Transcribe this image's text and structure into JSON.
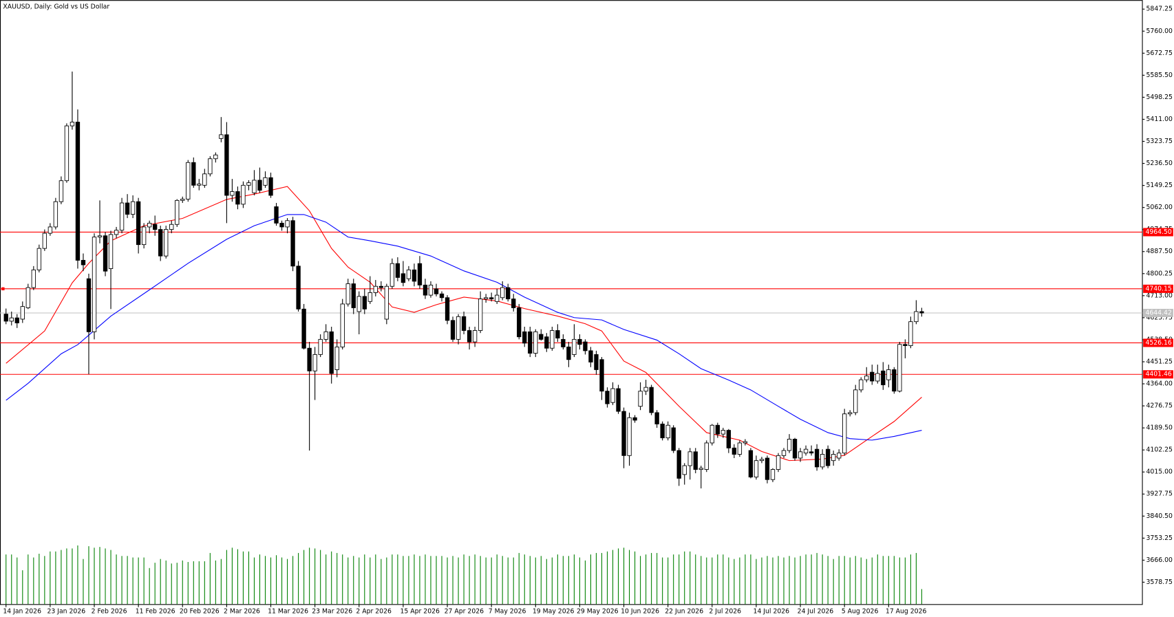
{
  "chart_data": {
    "type": "candlestick",
    "title": "XAUUSD, Daily:  Gold vs US Dollar",
    "categories": [
      "14 Jan 2026",
      null,
      null,
      null,
      null,
      null,
      null,
      null,
      "23 Jan 2026",
      null,
      null,
      null,
      null,
      null,
      null,
      null,
      "2 Feb 2026",
      null,
      null,
      null,
      null,
      null,
      null,
      null,
      "11 Feb 2026",
      null,
      null,
      null,
      null,
      null,
      null,
      null,
      "20 Feb 2026",
      null,
      null,
      null,
      null,
      null,
      null,
      null,
      "2 Mar 2026",
      null,
      null,
      null,
      null,
      null,
      null,
      null,
      "11 Mar 2026",
      null,
      null,
      null,
      null,
      null,
      null,
      null,
      "23 Mar 2026",
      null,
      null,
      null,
      null,
      null,
      null,
      null,
      "2 Apr 2026",
      null,
      null,
      null,
      null,
      null,
      null,
      null,
      "15 Apr 2026",
      null,
      null,
      null,
      null,
      null,
      null,
      null,
      "27 Apr 2026",
      null,
      null,
      null,
      null,
      null,
      null,
      null,
      "7 May 2026",
      null,
      null,
      null,
      null,
      null,
      null,
      null,
      "19 May 2026",
      null,
      null,
      null,
      null,
      null,
      null,
      null,
      "29 May 2026",
      null,
      null,
      null,
      null,
      null,
      null,
      null,
      "10 Jun 2026",
      null,
      null,
      null,
      null,
      null,
      null,
      null,
      "22 Jun 2026",
      null,
      null,
      null,
      null,
      null,
      null,
      null,
      "2 Jul 2026",
      null,
      null,
      null,
      null,
      null,
      null,
      null,
      "14 Jul 2026",
      null,
      null,
      null,
      null,
      null,
      null,
      null,
      "24 Jul 2026",
      null,
      null,
      null,
      null,
      null,
      null,
      null,
      "5 Aug 2026",
      null,
      null,
      null,
      null,
      null,
      null,
      null,
      "17 Aug 2026",
      null,
      null,
      null,
      null,
      null,
      null
    ],
    "open": [
      4640,
      4612,
      4625,
      4620,
      4665,
      4745,
      4815,
      4900,
      4960,
      4985,
      5085,
      5168,
      5385,
      5400,
      4853,
      4780,
      4570,
      4945,
      4950,
      4820,
      4955,
      4972,
      5080,
      5035,
      5085,
      4915,
      4985,
      4995,
      4975,
      4870,
      4975,
      4995,
      5090,
      5095,
      5240,
      5150,
      5150,
      5195,
      5255,
      5335,
      5350,
      5110,
      5125,
      5075,
      5150,
      5120,
      5170,
      5150,
      5180,
      5065,
      5000,
      4985,
      5010,
      4830,
      4660,
      4505,
      4415,
      4480,
      4540,
      4570,
      4420,
      4510,
      4680,
      4760,
      4650,
      4710,
      4690,
      4725,
      4750,
      4620,
      4750,
      4840,
      4800,
      4780,
      4815,
      4840,
      4755,
      4715,
      4740,
      4720,
      4705,
      4615,
      4540,
      4630,
      4575,
      4530,
      4575,
      4700,
      4705,
      4690,
      4705,
      4745,
      4700,
      4665,
      4570,
      4570,
      4485,
      4560,
      4550,
      4505,
      4575,
      4540,
      4510,
      4480,
      4540,
      4530,
      4495,
      4480,
      4460,
      4335,
      4290,
      4345,
      4255,
      4080,
      4230,
      4275,
      4335,
      4350,
      4250,
      4205,
      4150,
      4190,
      4100,
      4005,
      4040,
      4095,
      4025,
      4025,
      4130,
      4200,
      4165,
      4180,
      4110,
      4085,
      4130,
      4100,
      3995,
      4060,
      4070,
      3985,
      4025,
      4080,
      4100,
      4145,
      4070,
      4090,
      4095,
      4105,
      4035,
      4105,
      4060,
      4070,
      4090,
      4245,
      4250,
      4340,
      4380,
      4410,
      4375,
      4415,
      4380,
      4420,
      4335,
      4520,
      4515,
      4610,
      4650
    ],
    "high": [
      4662,
      4650,
      4640,
      4690,
      4760,
      4830,
      4915,
      4975,
      5000,
      5100,
      5185,
      5395,
      5600,
      5450,
      4880,
      4800,
      4960,
      5090,
      4965,
      4970,
      4985,
      5100,
      5115,
      5110,
      5100,
      5000,
      5010,
      5030,
      4990,
      4990,
      5010,
      5095,
      5105,
      5250,
      5260,
      5175,
      5215,
      5265,
      5280,
      5420,
      5400,
      5175,
      5145,
      5165,
      5170,
      5210,
      5220,
      5205,
      5200,
      5080,
      5010,
      5020,
      5025,
      4850,
      4680,
      4530,
      4510,
      4560,
      4600,
      4590,
      4540,
      4700,
      4780,
      4780,
      4730,
      4740,
      4790,
      4775,
      4770,
      4760,
      4860,
      4865,
      4850,
      4830,
      4840,
      4870,
      4780,
      4770,
      4760,
      4730,
      4715,
      4630,
      4640,
      4650,
      4590,
      4590,
      4730,
      4720,
      4725,
      4740,
      4770,
      4760,
      4720,
      4680,
      4590,
      4590,
      4580,
      4580,
      4565,
      4590,
      4600,
      4560,
      4530,
      4600,
      4560,
      4540,
      4510,
      4495,
      4470,
      4350,
      4370,
      4360,
      4270,
      4250,
      4240,
      4370,
      4380,
      4360,
      4260,
      4215,
      4215,
      4200,
      4110,
      4050,
      4110,
      4110,
      4040,
      4140,
      4205,
      4210,
      4190,
      4185,
      4125,
      4140,
      4145,
      4110,
      4080,
      4075,
      4080,
      4030,
      4090,
      4110,
      4165,
      4150,
      4110,
      4120,
      4120,
      4125,
      4105,
      4120,
      4100,
      4105,
      4265,
      4260,
      4360,
      4390,
      4430,
      4440,
      4440,
      4450,
      4440,
      4430,
      4530,
      4540,
      4630,
      4695,
      4665
    ],
    "low": [
      4600,
      4595,
      4585,
      4605,
      4660,
      4735,
      4805,
      4890,
      4950,
      4975,
      5075,
      5160,
      5370,
      4820,
      4810,
      4402,
      4540,
      4920,
      4790,
      4660,
      4940,
      4960,
      5020,
      5020,
      4880,
      4900,
      4960,
      4950,
      4850,
      4860,
      4960,
      4985,
      5080,
      5085,
      5140,
      5130,
      5140,
      5185,
      5240,
      5320,
      5000,
      5085,
      5055,
      5060,
      5130,
      5110,
      5120,
      5140,
      5100,
      4990,
      4970,
      4960,
      4810,
      4650,
      4500,
      4100,
      4300,
      4470,
      4530,
      4365,
      4390,
      4500,
      4670,
      4640,
      4560,
      4640,
      4680,
      4710,
      4730,
      4600,
      4740,
      4770,
      4750,
      4770,
      4750,
      4740,
      4700,
      4705,
      4710,
      4690,
      4600,
      4530,
      4520,
      4560,
      4500,
      4510,
      4565,
      4685,
      4690,
      4680,
      4695,
      4690,
      4650,
      4540,
      4510,
      4470,
      4470,
      4535,
      4490,
      4495,
      4530,
      4500,
      4430,
      4470,
      4500,
      4480,
      4430,
      4400,
      4300,
      4270,
      4280,
      4245,
      4030,
      4040,
      4210,
      4260,
      4320,
      4240,
      4190,
      4140,
      4140,
      4090,
      3960,
      3965,
      3985,
      4010,
      3950,
      4015,
      4120,
      4150,
      4150,
      4090,
      4070,
      4075,
      4120,
      3990,
      3985,
      4050,
      3970,
      3975,
      4015,
      4070,
      4090,
      4060,
      4055,
      4080,
      4080,
      4020,
      4025,
      4030,
      4040,
      4060,
      4080,
      4235,
      4240,
      4330,
      4370,
      4360,
      4365,
      4340,
      4350,
      4325,
      4330,
      4465,
      4505,
      4600,
      4630
    ],
    "close": [
      4612,
      4625,
      4605,
      4670,
      4745,
      4815,
      4900,
      4960,
      4985,
      5085,
      5168,
      5385,
      5400,
      4853,
      4835,
      4570,
      4945,
      4950,
      4810,
      4955,
      4972,
      5080,
      5035,
      5085,
      4915,
      4985,
      5000,
      4975,
      4870,
      4975,
      4995,
      5090,
      5095,
      5240,
      5150,
      5155,
      5195,
      5255,
      5270,
      5350,
      5110,
      5125,
      5075,
      5150,
      5160,
      5170,
      5130,
      5180,
      5110,
      5000,
      4985,
      5010,
      4830,
      4660,
      4505,
      4415,
      4480,
      4540,
      4570,
      4405,
      4510,
      4680,
      4760,
      4665,
      4710,
      4660,
      4725,
      4750,
      4745,
      4750,
      4840,
      4785,
      4765,
      4815,
      4770,
      4755,
      4715,
      4755,
      4720,
      4705,
      4615,
      4540,
      4630,
      4575,
      4530,
      4575,
      4700,
      4705,
      4700,
      4715,
      4745,
      4700,
      4665,
      4550,
      4525,
      4485,
      4570,
      4540,
      4505,
      4575,
      4545,
      4510,
      4460,
      4540,
      4520,
      4495,
      4450,
      4420,
      4335,
      4285,
      4345,
      4255,
      4080,
      4230,
      4220,
      4335,
      4350,
      4250,
      4205,
      4150,
      4200,
      4100,
      3990,
      4040,
      4095,
      4025,
      4030,
      4130,
      4200,
      4165,
      4180,
      4110,
      4085,
      4130,
      4135,
      3995,
      4060,
      4065,
      3985,
      4025,
      4080,
      4100,
      4145,
      4070,
      4095,
      4105,
      4090,
      4035,
      4085,
      4040,
      4085,
      4090,
      4245,
      4250,
      4340,
      4380,
      4395,
      4375,
      4405,
      4360,
      4420,
      4335,
      4520,
      4515,
      4610,
      4650,
      4644.42
    ],
    "volume": [
      66,
      66,
      62,
      45,
      66,
      62,
      67,
      64,
      70,
      70,
      72,
      74,
      74,
      78,
      60,
      77,
      75,
      76,
      74,
      72,
      66,
      64,
      64,
      62,
      62,
      62,
      48,
      55,
      60,
      58,
      54,
      55,
      58,
      56,
      57,
      57,
      57,
      68,
      58,
      60,
      72,
      75,
      73,
      70,
      70,
      62,
      66,
      64,
      62,
      65,
      62,
      60,
      64,
      68,
      72,
      75,
      74,
      72,
      66,
      70,
      68,
      66,
      62,
      64,
      62,
      66,
      62,
      66,
      60,
      62,
      66,
      66,
      64,
      64,
      66,
      64,
      66,
      64,
      64,
      64,
      62,
      64,
      62,
      66,
      64,
      66,
      64,
      62,
      62,
      66,
      64,
      62,
      62,
      68,
      66,
      64,
      62,
      64,
      60,
      62,
      66,
      64,
      64,
      66,
      62,
      58,
      66,
      68,
      68,
      70,
      72,
      74,
      75,
      72,
      70,
      64,
      66,
      68,
      68,
      62,
      62,
      66,
      66,
      70,
      70,
      66,
      64,
      62,
      62,
      66,
      66,
      62,
      60,
      62,
      66,
      66,
      60,
      62,
      64,
      62,
      64,
      62,
      64,
      62,
      64,
      66,
      66,
      68,
      66,
      64,
      60,
      64,
      64,
      62,
      64,
      62,
      60,
      62,
      66,
      64,
      64,
      64,
      62,
      62,
      66,
      68,
      20
    ],
    "vlim": [
      0,
      100
    ],
    "volume_color": "#008000",
    "up_color": "#ffffff",
    "down_color": "#000000",
    "lines": [
      {
        "color": "#ff0000",
        "x": [
          0,
          7,
          12,
          15,
          19,
          25,
          32,
          40,
          45,
          51,
          55,
          59,
          62,
          66,
          70,
          74,
          78,
          83,
          89,
          94,
          100,
          105,
          108,
          112,
          116,
          122,
          127,
          133,
          137,
          142,
          148,
          152,
          157,
          161,
          166
        ],
        "values": [
          4445,
          4573,
          4764,
          4841,
          4930,
          4990,
          5019,
          5094,
          5115,
          5145,
          5049,
          4900,
          4826,
          4766,
          4668,
          4647,
          4677,
          4707,
          4692,
          4662,
          4632,
          4602,
          4573,
          4454,
          4409,
          4275,
          4171,
          4141,
          4096,
          4060,
          4066,
          4081,
          4156,
          4215,
          4311
        ]
      },
      {
        "color": "#0000ff",
        "x": [
          0,
          4,
          10,
          13,
          19,
          26,
          33,
          40,
          45,
          51,
          54,
          58,
          62,
          66,
          71,
          77,
          83,
          89,
          94,
          100,
          103,
          108,
          112,
          118,
          122,
          126,
          131,
          135,
          140,
          144,
          149,
          153,
          157,
          161,
          166
        ],
        "values": [
          4299,
          4366,
          4483,
          4519,
          4632,
          4736,
          4841,
          4936,
          4990,
          5034,
          5034,
          5004,
          4945,
          4930,
          4909,
          4870,
          4811,
          4766,
          4707,
          4647,
          4626,
          4617,
          4579,
          4537,
          4483,
          4424,
          4379,
          4340,
          4275,
          4224,
          4171,
          4147,
          4141,
          4156,
          4180
        ]
      }
    ],
    "levels": [
      {
        "value": 4964.5,
        "label": "4964.50"
      },
      {
        "value": 4740.15,
        "label": "4740.15"
      },
      {
        "value": 4526.16,
        "label": "4526.16"
      },
      {
        "value": 4401.46,
        "label": "4401.46"
      }
    ],
    "level_color": "#ff0000",
    "last_price": {
      "value": 4644.42,
      "label": "4644.42"
    },
    "last_color": "#c0c0c0",
    "ylim": [
      3492,
      5874
    ],
    "yticks": [
      {
        "value": 5847.25,
        "label": "5847.25"
      },
      {
        "value": 5760,
        "label": "5760.00"
      },
      {
        "value": 5672.75,
        "label": "5672.75"
      },
      {
        "value": 5585.5,
        "label": "5585.50"
      },
      {
        "value": 5498.25,
        "label": "5498.25"
      },
      {
        "value": 5411,
        "label": "5411.00"
      },
      {
        "value": 5323.75,
        "label": "5323.75"
      },
      {
        "value": 5236.5,
        "label": "5236.50"
      },
      {
        "value": 5149.25,
        "label": "5149.25"
      },
      {
        "value": 5062,
        "label": "5062.00"
      },
      {
        "value": 4974.75,
        "label": "4974.75"
      },
      {
        "value": 4887.5,
        "label": "4887.50"
      },
      {
        "value": 4800.25,
        "label": "4800.25"
      },
      {
        "value": 4713,
        "label": "4713.00"
      },
      {
        "value": 4625.75,
        "label": "4625.75"
      },
      {
        "value": 4538.5,
        "label": "4538.50"
      },
      {
        "value": 4451.25,
        "label": "4451.25"
      },
      {
        "value": 4364,
        "label": "4364.00"
      },
      {
        "value": 4276.75,
        "label": "4276.75"
      },
      {
        "value": 4189.5,
        "label": "4189.50"
      },
      {
        "value": 4102.25,
        "label": "4102.25"
      },
      {
        "value": 4015,
        "label": "4015.00"
      },
      {
        "value": 3927.75,
        "label": "3927.75"
      },
      {
        "value": 3840.5,
        "label": "3840.50"
      },
      {
        "value": 3753.25,
        "label": "3753.25"
      },
      {
        "value": 3666,
        "label": "3666.00"
      },
      {
        "value": 3578.75,
        "label": "3578.75"
      }
    ]
  }
}
